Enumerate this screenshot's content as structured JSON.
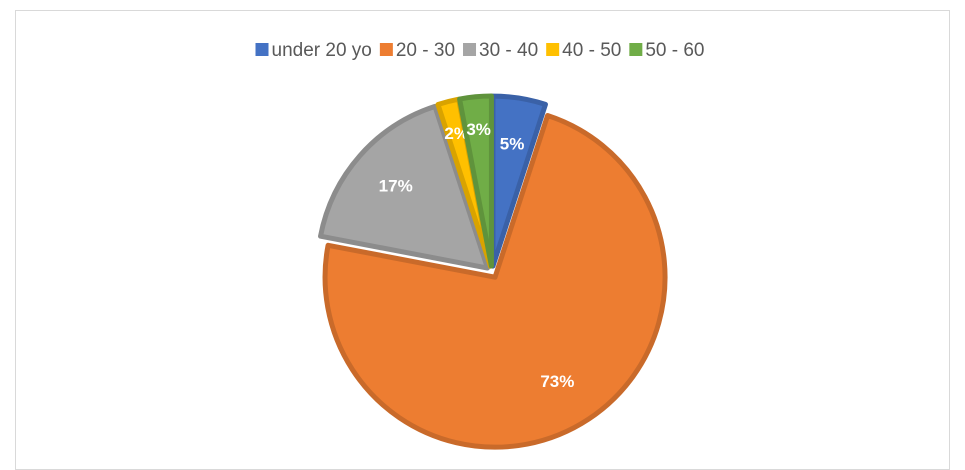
{
  "chart_data": {
    "type": "pie",
    "categories": [
      "under 20 yo",
      "20 - 30",
      "30 - 40",
      "40 - 50",
      "50 - 60"
    ],
    "values": [
      5,
      73,
      17,
      2,
      3
    ],
    "value_labels": [
      "5%",
      "73%",
      "17%",
      "2%",
      "3%"
    ],
    "colors": [
      "#4472c4",
      "#ed7d31",
      "#a5a5a5",
      "#ffc000",
      "#70ad47"
    ],
    "legend": "top"
  }
}
